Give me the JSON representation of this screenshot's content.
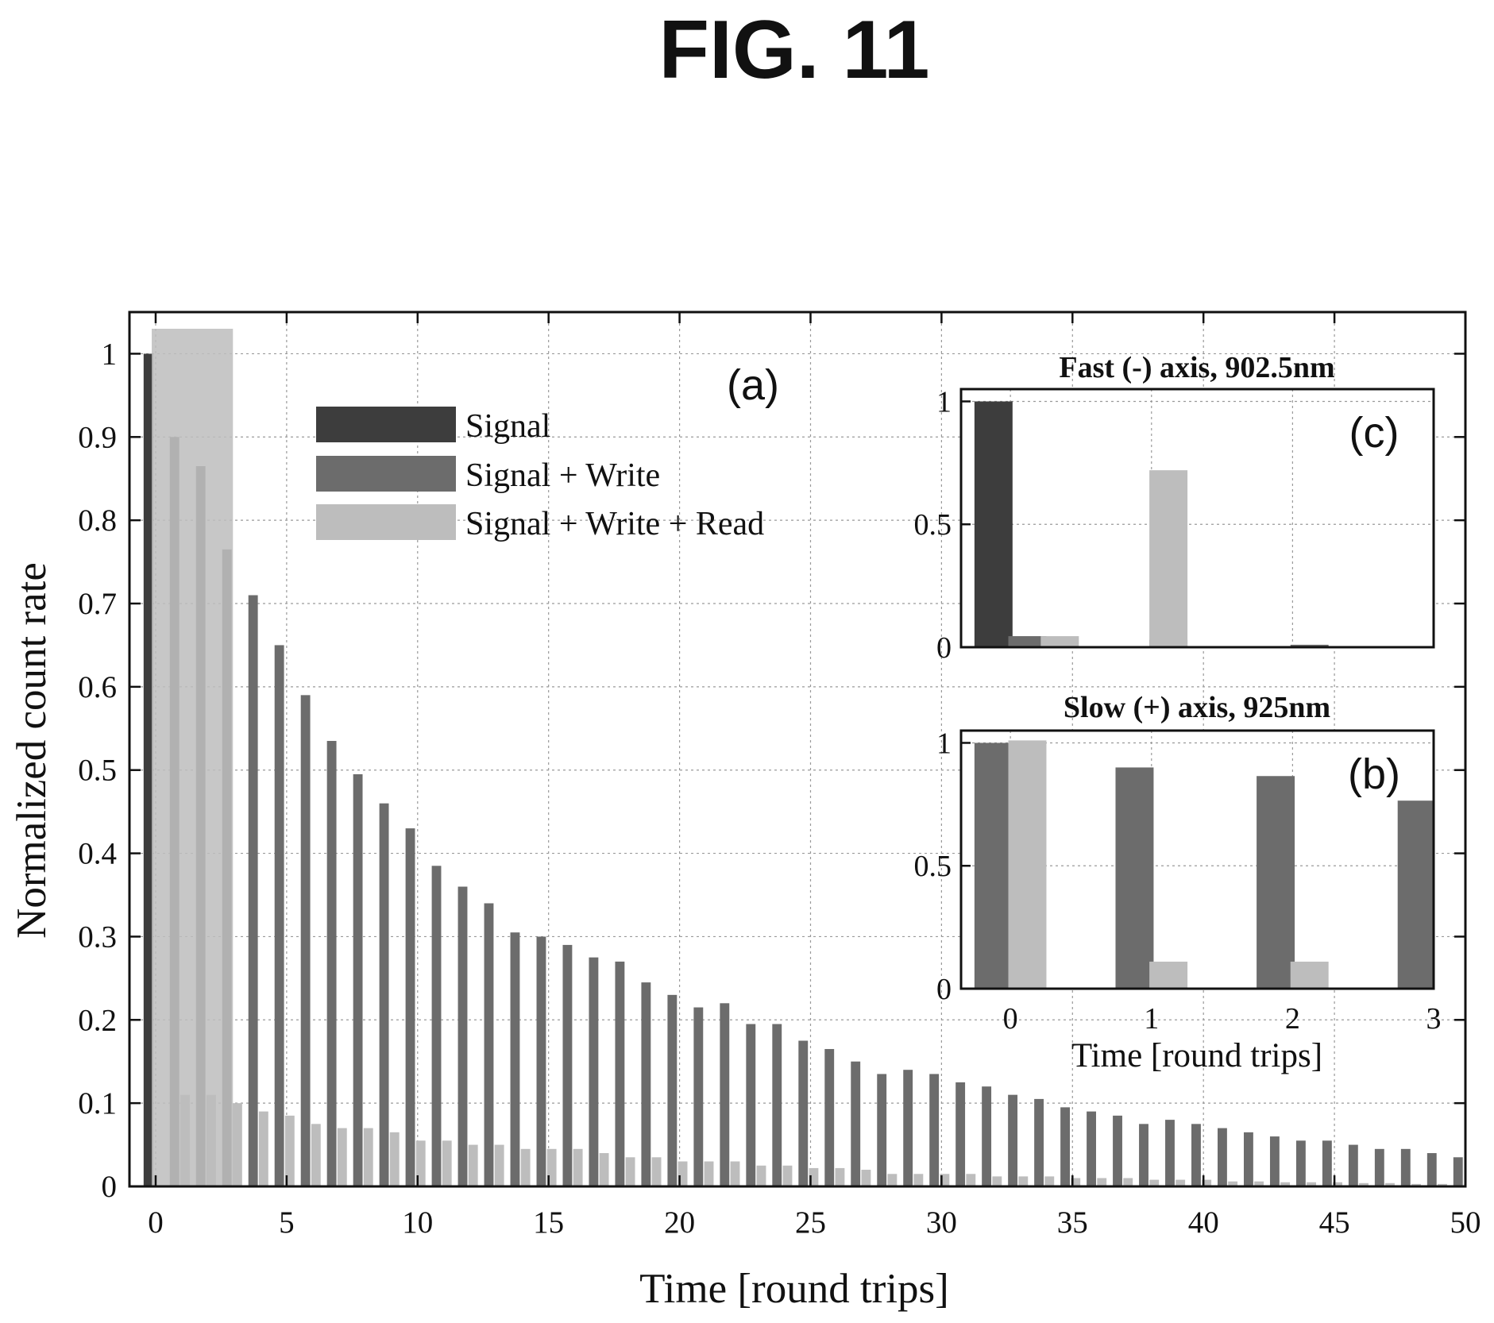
{
  "figure": {
    "title": "FIG. 11"
  },
  "colors": {
    "Signal": "#3d3d3d",
    "Signal + Write": "#6c6c6c",
    "Signal + Write + Read": "#bdbdbd"
  },
  "chart_data": [
    {
      "id": "a",
      "type": "bar",
      "panel_label": "(a)",
      "title": "",
      "xlabel": "Time [round trips]",
      "ylabel": "Normalized count rate",
      "xlim": [
        -1,
        50
      ],
      "ylim": [
        0,
        1.05
      ],
      "xticks": [
        0,
        5,
        10,
        15,
        20,
        25,
        30,
        35,
        40,
        45,
        50
      ],
      "yticks": [
        0,
        0.1,
        0.2,
        0.3,
        0.4,
        0.5,
        0.6,
        0.7,
        0.8,
        0.9,
        1
      ],
      "grid": true,
      "legend_position": "top-left",
      "series": [
        {
          "name": "Signal",
          "x": [
            0
          ],
          "values": [
            1.0
          ]
        },
        {
          "name": "Signal + Write",
          "x": [
            1,
            2,
            3,
            4,
            5,
            6,
            7,
            8,
            9,
            10,
            11,
            12,
            13,
            14,
            15,
            16,
            17,
            18,
            19,
            20,
            21,
            22,
            23,
            24,
            25,
            26,
            27,
            28,
            29,
            30,
            31,
            32,
            33,
            34,
            35,
            36,
            37,
            38,
            39,
            40,
            41,
            42,
            43,
            44,
            45,
            46,
            47,
            48,
            49,
            50
          ],
          "values": [
            0.9,
            0.865,
            0.765,
            0.71,
            0.65,
            0.59,
            0.535,
            0.495,
            0.46,
            0.43,
            0.385,
            0.36,
            0.34,
            0.305,
            0.3,
            0.29,
            0.275,
            0.27,
            0.245,
            0.23,
            0.215,
            0.22,
            0.195,
            0.195,
            0.175,
            0.165,
            0.15,
            0.135,
            0.14,
            0.135,
            0.125,
            0.12,
            0.11,
            0.105,
            0.095,
            0.09,
            0.085,
            0.075,
            0.08,
            0.075,
            0.07,
            0.065,
            0.06,
            0.055,
            0.055,
            0.05,
            0.045,
            0.045,
            0.04,
            0.035
          ]
        },
        {
          "name": "Signal + Write + Read",
          "x": [
            0,
            1,
            2,
            3,
            4,
            5,
            6,
            7,
            8,
            9,
            10,
            11,
            12,
            13,
            14,
            15,
            16,
            17,
            18,
            19,
            20,
            21,
            22,
            23,
            24,
            25,
            26,
            27,
            28,
            29,
            30,
            31,
            32,
            33,
            34,
            35,
            36,
            37,
            38,
            39,
            40,
            41,
            42,
            43,
            44,
            45,
            46,
            47,
            48,
            49
          ],
          "values": [
            1.03,
            0.11,
            0.11,
            0.1,
            0.09,
            0.085,
            0.075,
            0.07,
            0.07,
            0.065,
            0.055,
            0.055,
            0.05,
            0.05,
            0.045,
            0.045,
            0.045,
            0.04,
            0.035,
            0.035,
            0.03,
            0.03,
            0.03,
            0.025,
            0.025,
            0.022,
            0.022,
            0.02,
            0.015,
            0.015,
            0.015,
            0.015,
            0.012,
            0.012,
            0.012,
            0.01,
            0.01,
            0.01,
            0.008,
            0.008,
            0.008,
            0.006,
            0.006,
            0.005,
            0.005,
            0.005,
            0.004,
            0.004,
            0.003,
            0.003
          ]
        }
      ]
    },
    {
      "id": "c",
      "type": "bar",
      "panel_label": "(c)",
      "title": "Fast (-) axis, 902.5nm",
      "xlabel": "",
      "ylabel": "",
      "xlim": [
        -0.35,
        3
      ],
      "ylim": [
        0,
        1.05
      ],
      "xticks": [
        0,
        1,
        2,
        3
      ],
      "yticks": [
        0,
        0.5,
        1
      ],
      "grid": true,
      "series": [
        {
          "name": "Signal",
          "x": [
            0
          ],
          "values": [
            1.0
          ]
        },
        {
          "name": "Signal + Write",
          "x": [
            0,
            1,
            2
          ],
          "values": [
            0.045,
            0.03,
            0.01
          ]
        },
        {
          "name": "Signal + Write + Read",
          "x": [
            0,
            1
          ],
          "values": [
            0.045,
            0.72
          ]
        }
      ]
    },
    {
      "id": "b",
      "type": "bar",
      "panel_label": "(b)",
      "title": "Slow (+) axis, 925nm",
      "xlabel": "Time [round trips]",
      "ylabel": "",
      "xlim": [
        -0.35,
        3
      ],
      "ylim": [
        0,
        1.05
      ],
      "xticks": [
        0,
        1,
        2,
        3
      ],
      "yticks": [
        0,
        0.5,
        1
      ],
      "grid": true,
      "series": [
        {
          "name": "Signal + Write",
          "x": [
            0,
            1,
            2,
            3
          ],
          "values": [
            1.0,
            0.9,
            0.865,
            0.765
          ]
        },
        {
          "name": "Signal + Write + Read",
          "x": [
            0,
            1,
            2
          ],
          "values": [
            1.01,
            0.11,
            0.11
          ]
        }
      ]
    }
  ]
}
